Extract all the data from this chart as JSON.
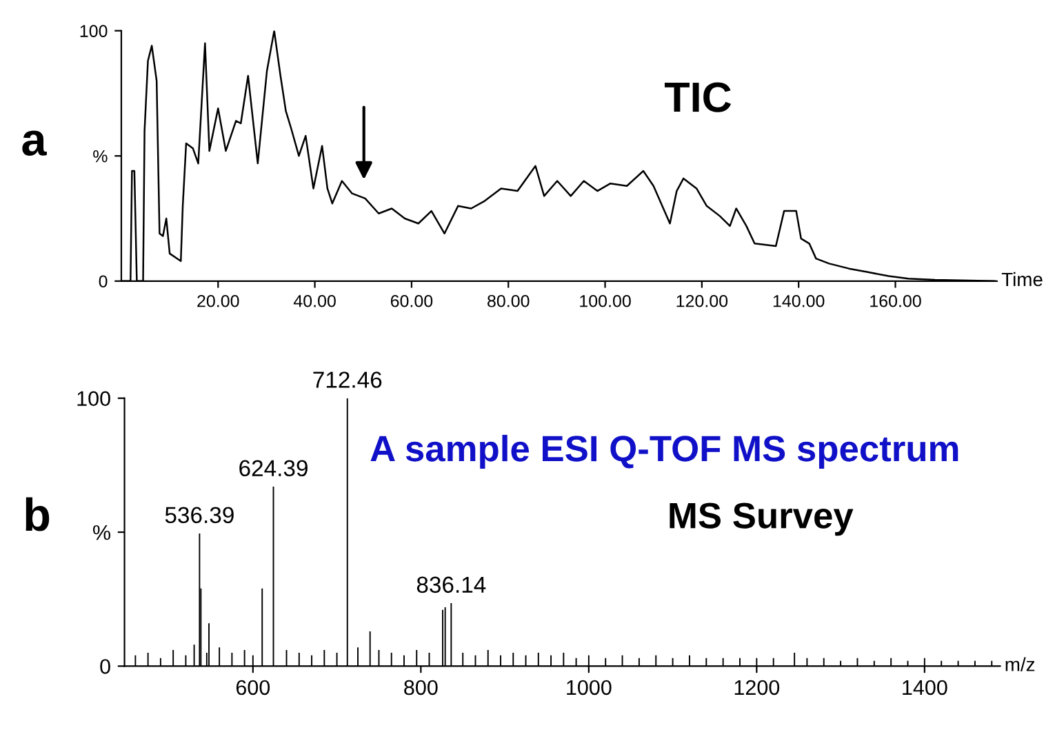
{
  "chart_data": [
    {
      "type": "line",
      "title": "a",
      "xlabel": "Time",
      "xlim": [
        0,
        181
      ],
      "xticks": [
        {
          "value": 20,
          "label": "20.00"
        },
        {
          "value": 40,
          "label": "40.00"
        },
        {
          "value": 60,
          "label": "60.00"
        },
        {
          "value": 80,
          "label": "80.00"
        },
        {
          "value": 100,
          "label": "100.00"
        },
        {
          "value": 120,
          "label": "120.00"
        },
        {
          "value": 140,
          "label": "140.00"
        },
        {
          "value": 160,
          "label": "160.00"
        }
      ],
      "ylim": [
        0,
        100
      ],
      "yticks": [
        0,
        {
          "value": 50,
          "label": "%"
        },
        100
      ],
      "grid": false,
      "legend": false,
      "series": [
        {
          "color": "#000000",
          "x": [
            0,
            1.9,
            2.2,
            2.7,
            3.2,
            4.5,
            4.8,
            5.5,
            6.3,
            7.3,
            7.9,
            8.6,
            9.3,
            10,
            12.3,
            12.7,
            13.4,
            14.8,
            15.9,
            17.3,
            18.2,
            20,
            21.6,
            23.7,
            24.7,
            26.2,
            28.2,
            30.1,
            31.6,
            32.9,
            34,
            35.1,
            36.7,
            38.1,
            39.7,
            41.5,
            42.6,
            43.6,
            45.6,
            47.7,
            50.4,
            53.2,
            55.9,
            58.6,
            61.4,
            64.1,
            66.8,
            69.6,
            72.3,
            75.1,
            78.5,
            81.9,
            85.6,
            87.4,
            90.1,
            92.9,
            95.6,
            98.4,
            101.1,
            104.5,
            107.9,
            110,
            113.4,
            114.8,
            116.2,
            118.9,
            121,
            123.7,
            125.8,
            127.1,
            129.2,
            130.9,
            135.3,
            137,
            139.5,
            140.5,
            142.2,
            143.6,
            146.3,
            150.4,
            154.5,
            158.6,
            162.7,
            168.2,
            180.5
          ],
          "values": [
            0,
            0,
            44,
            44,
            0,
            0,
            60,
            88,
            94,
            80,
            19,
            18,
            25,
            11,
            8,
            30,
            55,
            53,
            47,
            95,
            52,
            69,
            52,
            64,
            63,
            82,
            47,
            84,
            100,
            82,
            68,
            61,
            50,
            58,
            37,
            54,
            37,
            31,
            40,
            35,
            33,
            27,
            29,
            25,
            23,
            28,
            19,
            30,
            29,
            32,
            37,
            36,
            46,
            34,
            40,
            34,
            40,
            36,
            39,
            38,
            44,
            38,
            23,
            36,
            41,
            37,
            30,
            26,
            22,
            29,
            22,
            15,
            14,
            28,
            28,
            17,
            15,
            9,
            7,
            5,
            3.5,
            2,
            1,
            0.5,
            0
          ]
        }
      ],
      "annotations": [
        "TIC"
      ]
    },
    {
      "type": "bar",
      "title": "b",
      "xlabel": "m/z",
      "xlim": [
        447,
        1490
      ],
      "xticks": [
        600,
        800,
        1000,
        1200,
        1400
      ],
      "ylim": [
        0,
        100
      ],
      "yticks": [
        0,
        {
          "value": 50,
          "label": "%"
        },
        100
      ],
      "grid": false,
      "legend": false,
      "series": [
        {
          "color": "#000000",
          "x": [
            460,
            475,
            490,
            505,
            520,
            530,
            536.39,
            538,
            545,
            547.6,
            560,
            575,
            590,
            600,
            611,
            624.39,
            640,
            655,
            670,
            685,
            700,
            712.46,
            725,
            739.5,
            750,
            765,
            780,
            795,
            810,
            826,
            829,
            836.14,
            850,
            865,
            880,
            895,
            910,
            925,
            940,
            955,
            970,
            985,
            1000,
            1020,
            1040,
            1060,
            1080,
            1100,
            1120,
            1140,
            1160,
            1180,
            1200,
            1220,
            1245,
            1260,
            1280,
            1300,
            1320,
            1340,
            1360,
            1380,
            1400,
            1420,
            1440,
            1460,
            1480
          ],
          "values": [
            4,
            5,
            3,
            6,
            4,
            8,
            49.5,
            29,
            5,
            16,
            7,
            5,
            6,
            4,
            29,
            67,
            6,
            5,
            4,
            6,
            5,
            100,
            7,
            13,
            6,
            5,
            4,
            6,
            5,
            21,
            22,
            23.5,
            5,
            4,
            6,
            4,
            5,
            4,
            5,
            4,
            5,
            3,
            4,
            3,
            4,
            3,
            4,
            3,
            4,
            3,
            3,
            3,
            3,
            3,
            5,
            3,
            3,
            2,
            3,
            2,
            3,
            2,
            3,
            2,
            2,
            2,
            2
          ]
        }
      ],
      "annotations": [
        {
          "text": "536.39",
          "x": 536.39,
          "y": 49.5
        },
        {
          "text": "624.39",
          "x": 624.39,
          "y": 67
        },
        {
          "text": "712.46",
          "x": 712.46,
          "y": 100
        },
        {
          "text": "836.14",
          "x": 836.14,
          "y": 23.5
        },
        "A sample ESI Q-TOF MS spectrum",
        "MS Survey"
      ]
    }
  ]
}
